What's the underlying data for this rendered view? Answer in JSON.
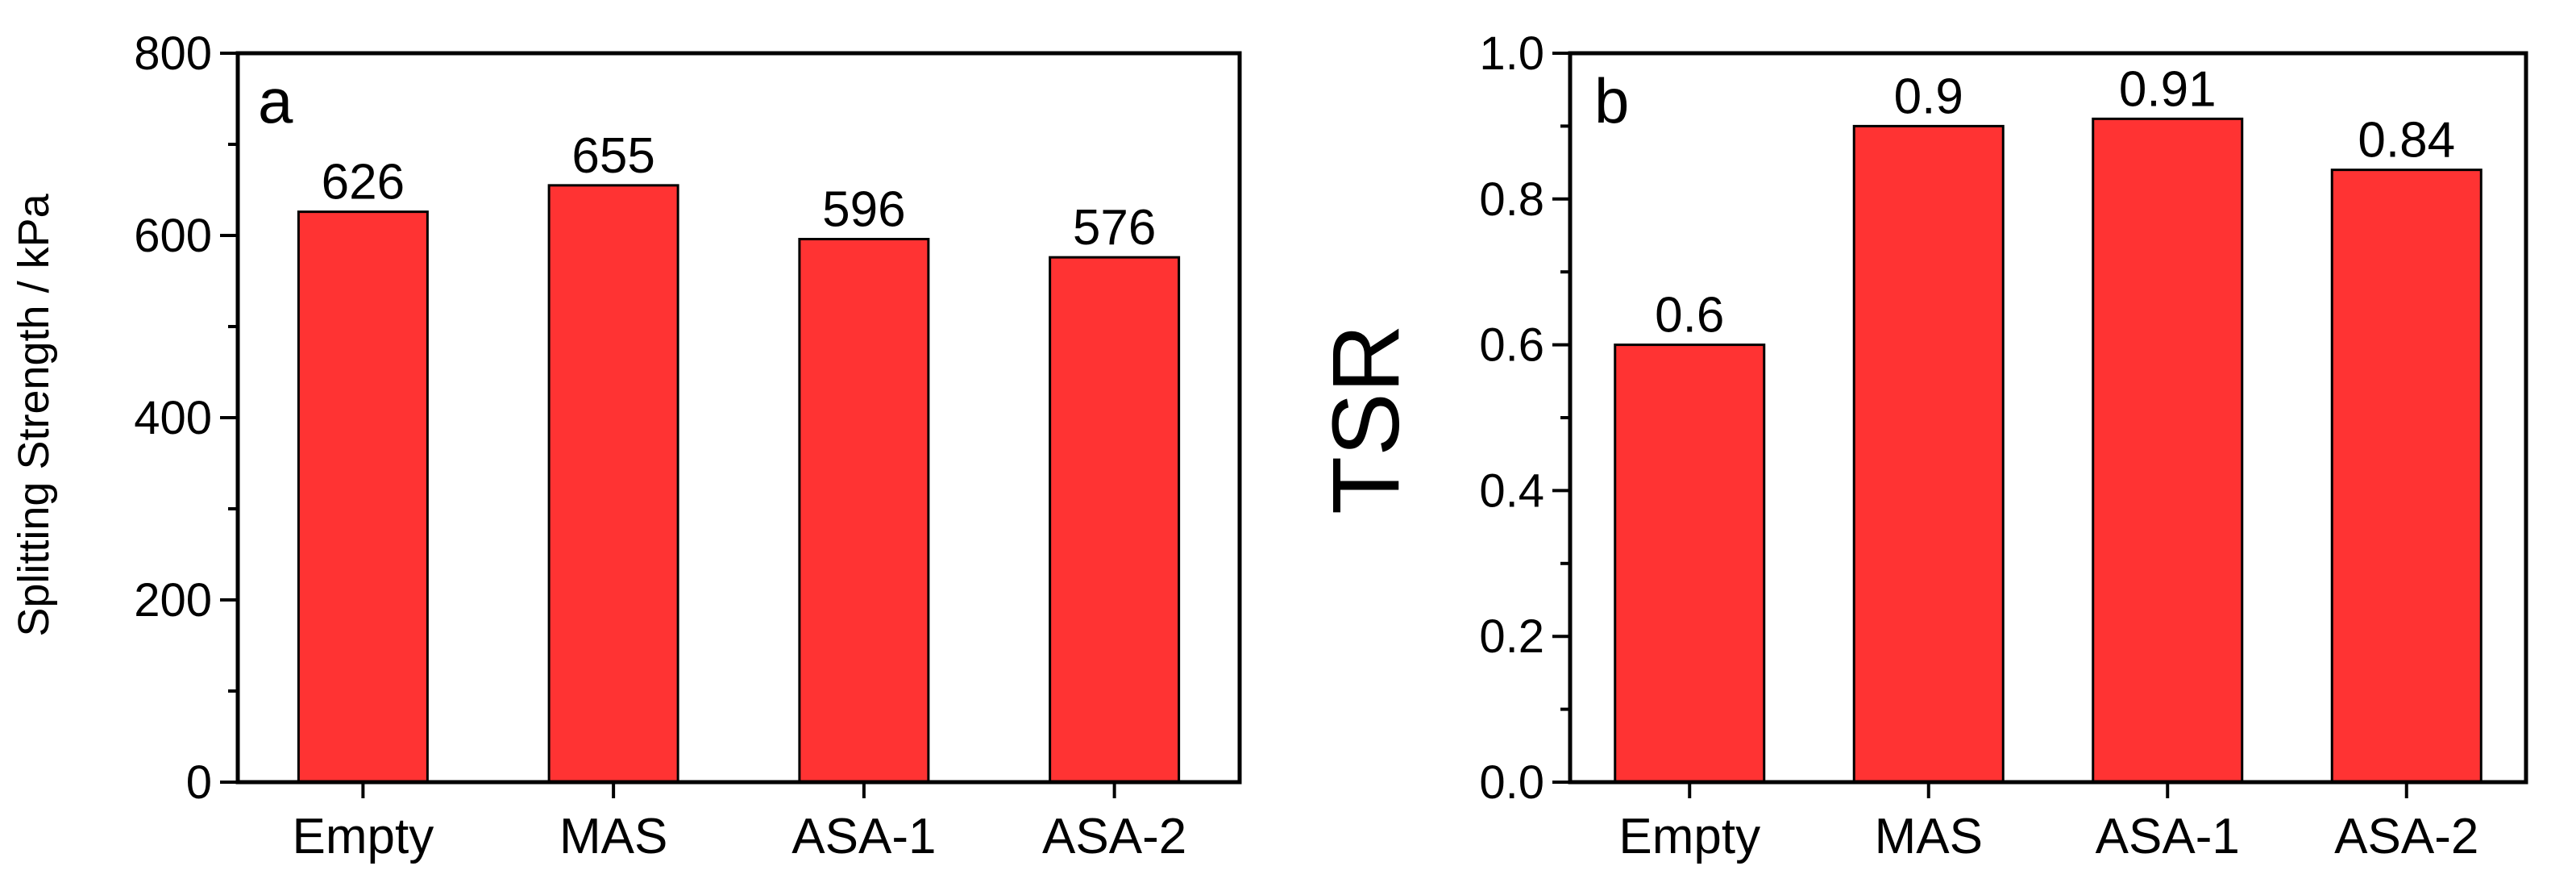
{
  "chart_data": [
    {
      "type": "bar",
      "panel_label": "a",
      "categories": [
        "Empty",
        "MAS",
        "ASA-1",
        "ASA-2"
      ],
      "values": [
        626,
        655,
        596,
        576
      ],
      "value_labels": [
        "626",
        "655",
        "596",
        "576"
      ],
      "ylabel": "Splitting Strength / kPa",
      "ylim": [
        0,
        800
      ],
      "yticks": [
        0,
        200,
        400,
        600,
        800
      ],
      "ytick_labels": [
        "0",
        "200",
        "400",
        "600",
        "800"
      ],
      "bar_color": "#ff3333",
      "grid": false
    },
    {
      "type": "bar",
      "panel_label": "b",
      "categories": [
        "Empty",
        "MAS",
        "ASA-1",
        "ASA-2"
      ],
      "values": [
        0.6,
        0.9,
        0.91,
        0.84
      ],
      "value_labels": [
        "0.6",
        "0.9",
        "0.91",
        "0.84"
      ],
      "ylabel": "TSR",
      "ylim": [
        0,
        1.0
      ],
      "yticks": [
        0,
        0.2,
        0.4,
        0.6,
        0.8,
        1.0
      ],
      "ytick_labels": [
        "0.0",
        "0.2",
        "0.4",
        "0.6",
        "0.8",
        "1.0"
      ],
      "bar_color": "#ff3333",
      "grid": false
    }
  ]
}
